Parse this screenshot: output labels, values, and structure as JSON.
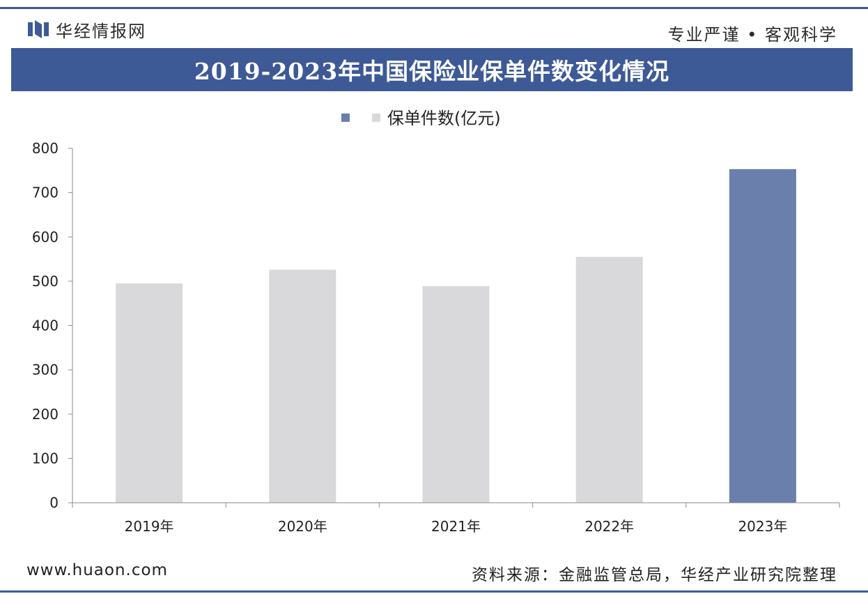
{
  "header": {
    "brand": "华经情报网",
    "slogan": "专业严谨 • 客观科学"
  },
  "colors": {
    "accent": "#3d5a96",
    "bar_default": "#d9d9dc",
    "bar_highlight": "#6a7fab"
  },
  "chart_data": {
    "type": "bar",
    "title": "2019-2023年中国保险业保单件数变化情况",
    "categories": [
      "2019年",
      "2020年",
      "2021年",
      "2022年",
      "2023年"
    ],
    "series": [
      {
        "name": "保单件数(亿元)",
        "values": [
          495,
          526,
          489,
          555,
          753
        ]
      }
    ],
    "highlight_index": 4,
    "ylim": [
      0,
      800
    ],
    "yticks": [
      0,
      100,
      200,
      300,
      400,
      500,
      600,
      700,
      800
    ],
    "grid": false,
    "legend": "top-center"
  },
  "footer": {
    "url": "www.huaon.com",
    "source": "资料来源：金融监管总局，华经产业研究院整理"
  }
}
